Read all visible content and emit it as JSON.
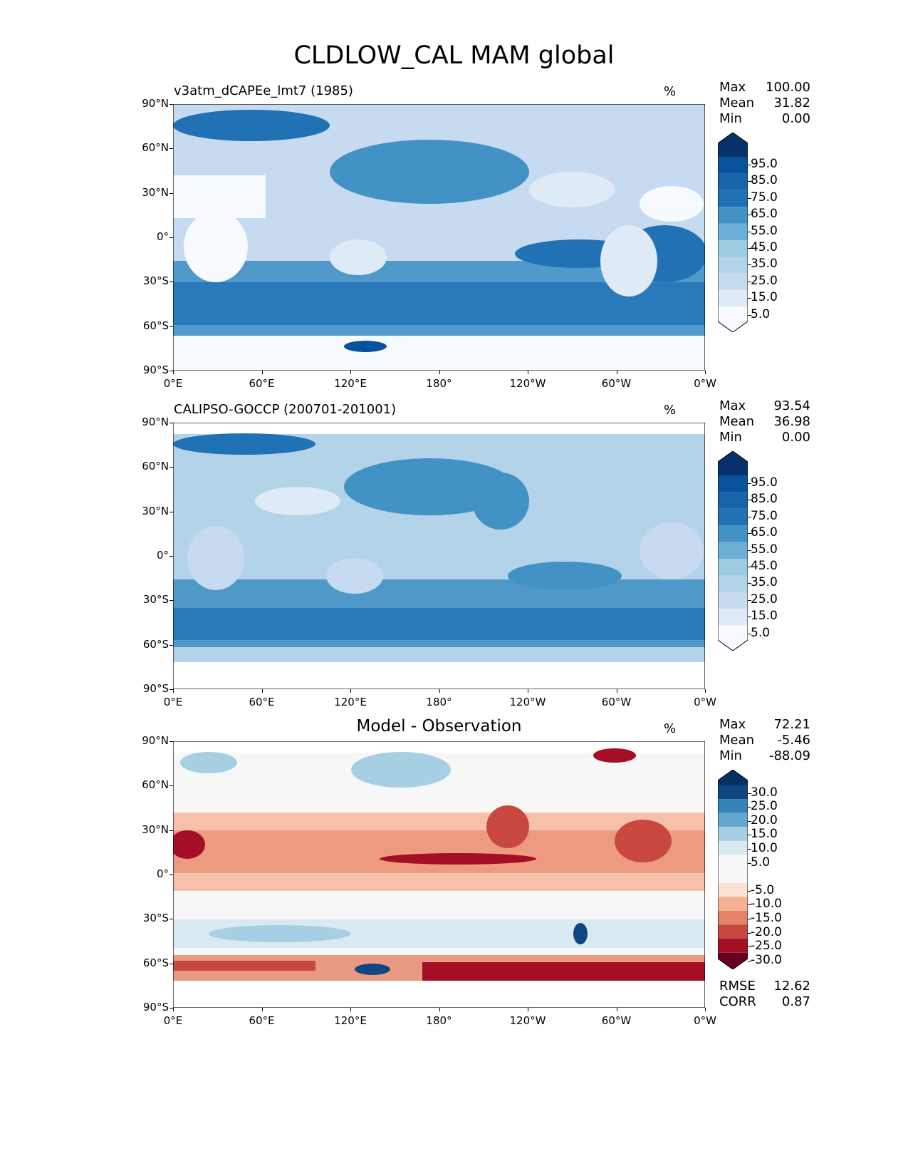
{
  "title": "CLDLOW_CAL MAM global",
  "lat_labels": [
    "90°N",
    "60°N",
    "30°N",
    "0°",
    "30°S",
    "60°S",
    "90°S"
  ],
  "lon_labels": [
    "0°E",
    "60°E",
    "120°E",
    "180°",
    "120°W",
    "60°W",
    "0°W"
  ],
  "panels": [
    {
      "id": "model",
      "title": "v3atm_dCAPEe_lmt7 (1985)",
      "unit": "%",
      "stats": {
        "max_label": "Max",
        "max": "100.00",
        "mean_label": "Mean",
        "mean": "31.82",
        "min_label": "Min",
        "min": "0.00"
      },
      "colorbar_labels": [
        "95.0",
        "85.0",
        "75.0",
        "65.0",
        "55.0",
        "45.0",
        "35.0",
        "25.0",
        "15.0",
        "5.0"
      ]
    },
    {
      "id": "obs",
      "title": "CALIPSO-GOCCP (200701-201001)",
      "unit": "%",
      "stats": {
        "max_label": "Max",
        "max": "93.54",
        "mean_label": "Mean",
        "mean": "36.98",
        "min_label": "Min",
        "min": "0.00"
      },
      "colorbar_labels": [
        "95.0",
        "85.0",
        "75.0",
        "65.0",
        "55.0",
        "45.0",
        "35.0",
        "25.0",
        "15.0",
        "5.0"
      ]
    },
    {
      "id": "diff",
      "title": "Model - Observation",
      "unit": "%",
      "stats": {
        "max_label": "Max",
        "max": "72.21",
        "mean_label": "Mean",
        "mean": "-5.46",
        "min_label": "Min",
        "min": "-88.09"
      },
      "colorbar_labels": [
        "30.0",
        "25.0",
        "20.0",
        "15.0",
        "10.0",
        "5.0",
        "-5.0",
        "-10.0",
        "-15.0",
        "-20.0",
        "-25.0",
        "-30.0"
      ],
      "rmse_label": "RMSE",
      "rmse": "12.62",
      "corr_label": "CORR",
      "corr": "0.87"
    }
  ],
  "colors": {
    "blues": [
      "#f7fbff",
      "#deebf7",
      "#c6dbef",
      "#b3d3e8",
      "#9ecae1",
      "#6baed6",
      "#4292c6",
      "#2171b5",
      "#1764ab",
      "#08519c",
      "#08306b"
    ],
    "rdbu": [
      "#67001f",
      "#a50f26",
      "#c94741",
      "#e58267",
      "#f6b293",
      "#fbe3d4",
      "#f7f7f7",
      "#d9e9f1",
      "#a6cfe4",
      "#65a8cf",
      "#3581ba",
      "#114781",
      "#053061"
    ]
  }
}
